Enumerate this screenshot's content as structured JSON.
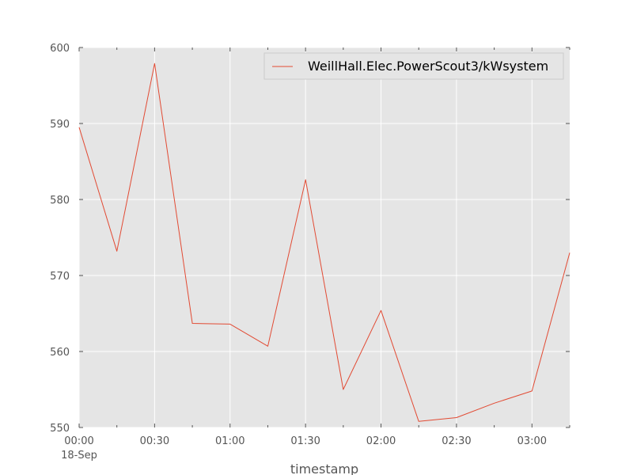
{
  "chart_data": {
    "type": "line",
    "xlabel": "timestamp",
    "ylabel": "",
    "date_label": "18-Sep",
    "x": [
      "00:00",
      "00:15",
      "00:30",
      "00:45",
      "01:00",
      "01:15",
      "01:30",
      "01:45",
      "02:00",
      "02:15",
      "02:30",
      "02:45",
      "03:00",
      "03:15"
    ],
    "x_tick_labels": [
      "00:00",
      "00:30",
      "01:00",
      "01:30",
      "02:00",
      "02:30",
      "03:00"
    ],
    "xlim": [
      "00:00",
      "03:15"
    ],
    "ylim": [
      550,
      600
    ],
    "y_ticks": [
      550,
      560,
      570,
      580,
      590,
      600
    ],
    "grid": true,
    "legend_position": "top-right",
    "series": [
      {
        "name": "WeillHall.Elec.PowerScout3/kWsystem",
        "color": "#e24a33",
        "values": [
          589.5,
          573.2,
          597.9,
          563.7,
          563.6,
          560.7,
          582.6,
          555.0,
          565.4,
          550.8,
          551.3,
          553.2,
          554.8,
          573.0
        ]
      }
    ]
  },
  "colors": {
    "plot_background": "#e5e5e5",
    "grid": "#ffffff",
    "text": "#555555"
  }
}
